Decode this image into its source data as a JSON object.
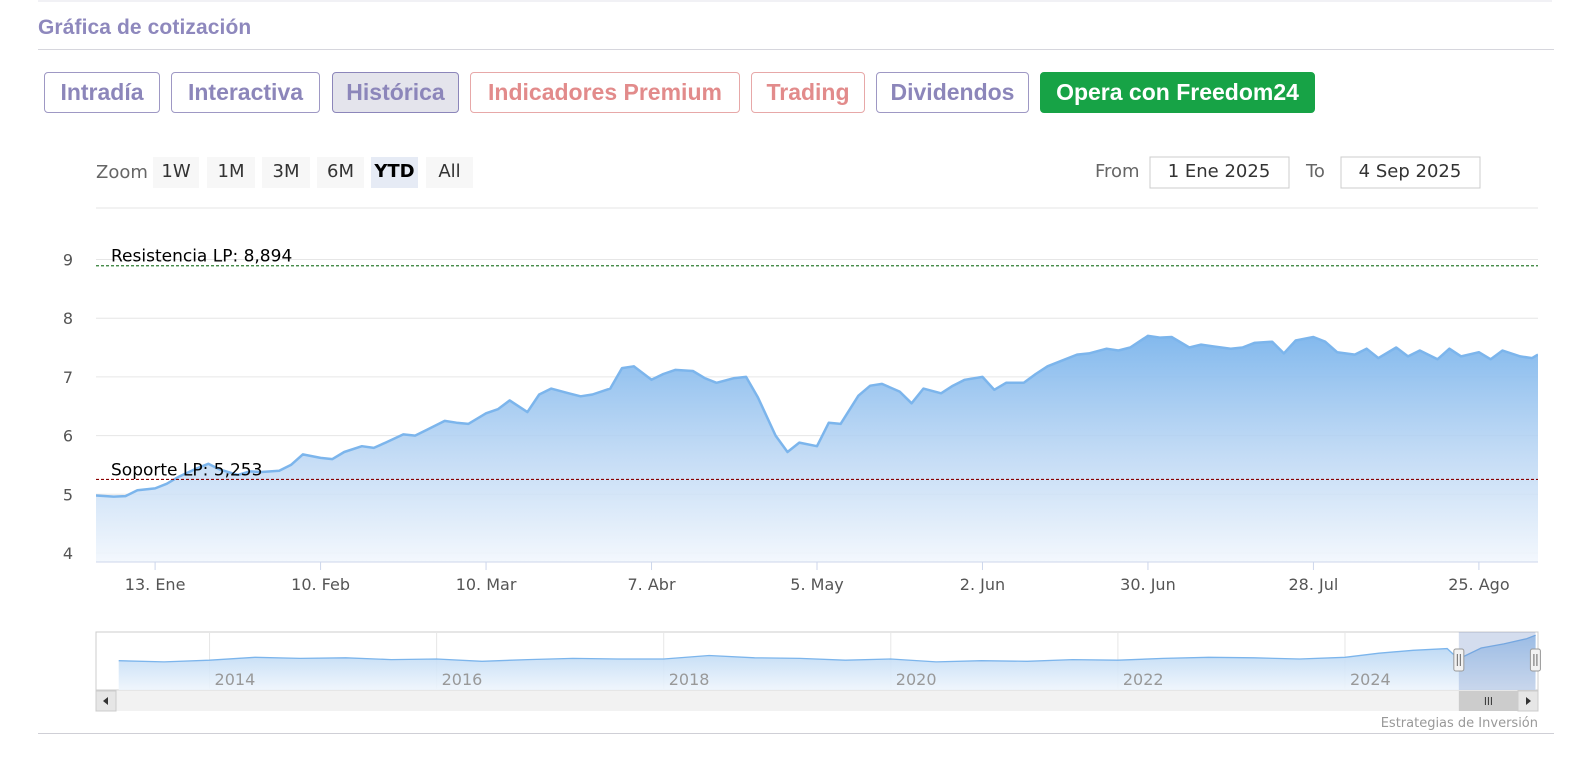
{
  "header": {
    "title": "Gráfica de cotización"
  },
  "tabs": [
    {
      "label": "Intradía",
      "variant": "default"
    },
    {
      "label": "Interactiva",
      "variant": "default"
    },
    {
      "label": "Histórica",
      "variant": "active"
    },
    {
      "label": "Indicadores Premium",
      "variant": "premium"
    },
    {
      "label": "Trading",
      "variant": "premium"
    },
    {
      "label": "Dividendos",
      "variant": "default"
    },
    {
      "label": "Opera con Freedom24",
      "variant": "cta"
    }
  ],
  "range_selector": {
    "zoom_label": "Zoom",
    "buttons": [
      "1W",
      "1M",
      "3M",
      "6M",
      "YTD",
      "All"
    ],
    "selected": "YTD",
    "from_label": "From",
    "from_value": "1 Ene 2025",
    "to_label": "To",
    "to_value": "4 Sep 2025"
  },
  "credits": "Estrategias de Inversión",
  "colors": {
    "line": "#7cb5ec",
    "resistance": "#2e7d32",
    "support": "#8b0000",
    "cta": "#17a346",
    "tab_text": "#8c86ba",
    "premium_text": "#e28b8b"
  },
  "chart_data": [
    {
      "type": "area",
      "title": "",
      "xlabel": "",
      "ylabel": "",
      "x_ticks": [
        "13. Ene",
        "10. Feb",
        "10. Mar",
        "7. Abr",
        "5. May",
        "2. Jun",
        "30. Jun",
        "28. Jul",
        "25. Ago"
      ],
      "y_ticks": [
        4,
        5,
        6,
        7,
        8,
        9
      ],
      "ylim": [
        4,
        9
      ],
      "xlim": [
        "2025-01-03",
        "2025-09-04"
      ],
      "grid": true,
      "legend": "none",
      "series": [
        {
          "points": [
            [
              "2025-01-03",
              4.98
            ],
            [
              "2025-01-06",
              4.96
            ],
            [
              "2025-01-08",
              4.97
            ],
            [
              "2025-01-10",
              5.07
            ],
            [
              "2025-01-13",
              5.1
            ],
            [
              "2025-01-15",
              5.18
            ],
            [
              "2025-01-17",
              5.3
            ],
            [
              "2025-01-20",
              5.44
            ],
            [
              "2025-01-22",
              5.52
            ],
            [
              "2025-01-24",
              5.42
            ],
            [
              "2025-01-27",
              5.33
            ],
            [
              "2025-01-29",
              5.39
            ],
            [
              "2025-01-31",
              5.38
            ],
            [
              "2025-02-03",
              5.4
            ],
            [
              "2025-02-05",
              5.5
            ],
            [
              "2025-02-07",
              5.68
            ],
            [
              "2025-02-10",
              5.62
            ],
            [
              "2025-02-12",
              5.6
            ],
            [
              "2025-02-14",
              5.72
            ],
            [
              "2025-02-17",
              5.82
            ],
            [
              "2025-02-19",
              5.79
            ],
            [
              "2025-02-21",
              5.88
            ],
            [
              "2025-02-24",
              6.02
            ],
            [
              "2025-02-26",
              6.0
            ],
            [
              "2025-02-28",
              6.1
            ],
            [
              "2025-03-03",
              6.25
            ],
            [
              "2025-03-05",
              6.22
            ],
            [
              "2025-03-07",
              6.2
            ],
            [
              "2025-03-10",
              6.38
            ],
            [
              "2025-03-12",
              6.45
            ],
            [
              "2025-03-14",
              6.6
            ],
            [
              "2025-03-17",
              6.4
            ],
            [
              "2025-03-19",
              6.7
            ],
            [
              "2025-03-21",
              6.8
            ],
            [
              "2025-03-24",
              6.72
            ],
            [
              "2025-03-26",
              6.67
            ],
            [
              "2025-03-28",
              6.7
            ],
            [
              "2025-03-31",
              6.8
            ],
            [
              "2025-04-02",
              7.15
            ],
            [
              "2025-04-04",
              7.18
            ],
            [
              "2025-04-07",
              6.95
            ],
            [
              "2025-04-09",
              7.05
            ],
            [
              "2025-04-11",
              7.12
            ],
            [
              "2025-04-14",
              7.1
            ],
            [
              "2025-04-16",
              6.98
            ],
            [
              "2025-04-18",
              6.9
            ],
            [
              "2025-04-21",
              6.98
            ],
            [
              "2025-04-23",
              7.0
            ],
            [
              "2025-04-25",
              6.65
            ],
            [
              "2025-04-28",
              6.0
            ],
            [
              "2025-04-30",
              5.72
            ],
            [
              "2025-05-02",
              5.88
            ],
            [
              "2025-05-05",
              5.82
            ],
            [
              "2025-05-07",
              6.22
            ],
            [
              "2025-05-09",
              6.2
            ],
            [
              "2025-05-12",
              6.68
            ],
            [
              "2025-05-14",
              6.85
            ],
            [
              "2025-05-16",
              6.88
            ],
            [
              "2025-05-19",
              6.75
            ],
            [
              "2025-05-21",
              6.55
            ],
            [
              "2025-05-23",
              6.8
            ],
            [
              "2025-05-26",
              6.72
            ],
            [
              "2025-05-28",
              6.85
            ],
            [
              "2025-05-30",
              6.95
            ],
            [
              "2025-06-02",
              7.0
            ],
            [
              "2025-06-04",
              6.78
            ],
            [
              "2025-06-06",
              6.9
            ],
            [
              "2025-06-09",
              6.9
            ],
            [
              "2025-06-11",
              7.05
            ],
            [
              "2025-06-13",
              7.18
            ],
            [
              "2025-06-16",
              7.3
            ],
            [
              "2025-06-18",
              7.38
            ],
            [
              "2025-06-20",
              7.4
            ],
            [
              "2025-06-23",
              7.48
            ],
            [
              "2025-06-25",
              7.45
            ],
            [
              "2025-06-27",
              7.5
            ],
            [
              "2025-06-30",
              7.7
            ],
            [
              "2025-07-02",
              7.67
            ],
            [
              "2025-07-04",
              7.68
            ],
            [
              "2025-07-07",
              7.5
            ],
            [
              "2025-07-09",
              7.55
            ],
            [
              "2025-07-11",
              7.52
            ],
            [
              "2025-07-14",
              7.48
            ],
            [
              "2025-07-16",
              7.5
            ],
            [
              "2025-07-18",
              7.58
            ],
            [
              "2025-07-21",
              7.6
            ],
            [
              "2025-07-23",
              7.4
            ],
            [
              "2025-07-25",
              7.62
            ],
            [
              "2025-07-28",
              7.68
            ],
            [
              "2025-07-30",
              7.6
            ],
            [
              "2025-08-01",
              7.42
            ],
            [
              "2025-08-04",
              7.38
            ],
            [
              "2025-08-06",
              7.48
            ],
            [
              "2025-08-08",
              7.32
            ],
            [
              "2025-08-11",
              7.5
            ],
            [
              "2025-08-13",
              7.35
            ],
            [
              "2025-08-15",
              7.45
            ],
            [
              "2025-08-18",
              7.3
            ],
            [
              "2025-08-20",
              7.48
            ],
            [
              "2025-08-22",
              7.35
            ],
            [
              "2025-08-25",
              7.42
            ],
            [
              "2025-08-27",
              7.3
            ],
            [
              "2025-08-29",
              7.45
            ],
            [
              "2025-09-01",
              7.35
            ],
            [
              "2025-09-03",
              7.32
            ],
            [
              "2025-09-04",
              7.38
            ]
          ]
        }
      ],
      "annotations": [
        {
          "label": "Resistencia LP: 8,894",
          "value": 8.894,
          "line_style": "dashed",
          "color": "#2e7d32"
        },
        {
          "label": "Soporte LP: 5,253",
          "value": 5.253,
          "line_style": "dashed",
          "color": "#8b0000"
        }
      ]
    },
    {
      "type": "area",
      "title": "",
      "x_ticks": [
        "2014",
        "2016",
        "2018",
        "2020",
        "2022",
        "2024"
      ],
      "xlim": [
        2013,
        2025.7
      ],
      "ylim": [
        0,
        10
      ],
      "selection": {
        "from": "2025-01-01",
        "to": "2025-09-04"
      },
      "series": [
        {
          "x": [
            2013.2,
            2013.6,
            2014.0,
            2014.4,
            2014.8,
            2015.2,
            2015.6,
            2016.0,
            2016.4,
            2016.8,
            2017.2,
            2017.6,
            2018.0,
            2018.4,
            2018.8,
            2019.2,
            2019.6,
            2020.0,
            2020.4,
            2020.8,
            2021.2,
            2021.6,
            2022.0,
            2022.4,
            2022.8,
            2023.2,
            2023.6,
            2024.0,
            2024.3,
            2024.6,
            2024.9,
            2025.0,
            2025.2,
            2025.4,
            2025.6,
            2025.68
          ],
          "y": [
            4.7,
            4.5,
            4.8,
            5.3,
            5.1,
            5.2,
            4.9,
            5.0,
            4.6,
            4.9,
            5.1,
            5.0,
            5.0,
            5.6,
            5.2,
            5.1,
            4.8,
            5.0,
            4.5,
            4.7,
            4.6,
            4.9,
            4.8,
            5.1,
            5.3,
            5.2,
            5.0,
            5.3,
            6.0,
            6.5,
            6.8,
            5.0,
            6.9,
            7.6,
            8.5,
            9.1
          ]
        }
      ]
    }
  ]
}
